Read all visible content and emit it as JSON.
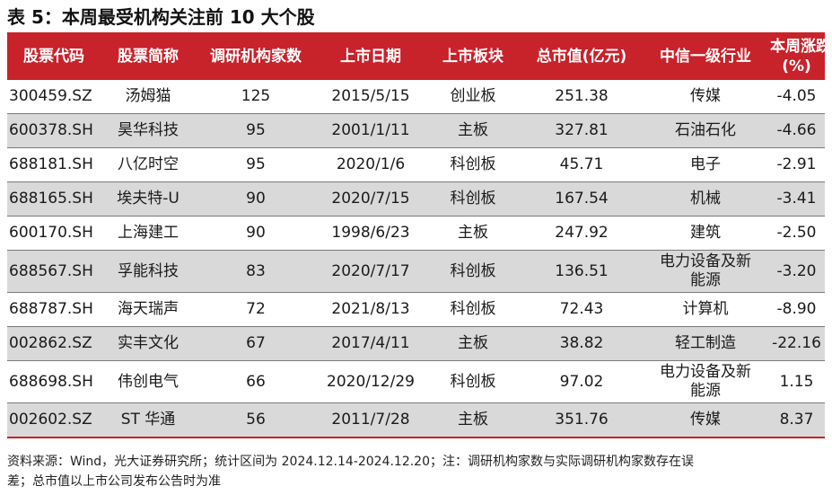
{
  "title": "表 5：本周最受机构关注前 10 大个股",
  "header": {
    "code": "股票代码",
    "name": "股票简称",
    "count": "调研机构家数",
    "date": "上市日期",
    "board": "上市板块",
    "mcap": "总市值(亿元)",
    "industry": "中信一级行业",
    "chg_line1": "本周涨跌幅",
    "chg_line2": "(%)"
  },
  "rows": [
    {
      "code": "300459.SZ",
      "name": "汤姆猫",
      "count": "125",
      "date": "2015/5/15",
      "board": "创业板",
      "mcap": "251.38",
      "industry": "传媒",
      "chg": "-4.05"
    },
    {
      "code": "600378.SH",
      "name": "昊华科技",
      "count": "95",
      "date": "2001/1/11",
      "board": "主板",
      "mcap": "327.81",
      "industry": "石油石化",
      "chg": "-4.66"
    },
    {
      "code": "688181.SH",
      "name": "八亿时空",
      "count": "95",
      "date": "2020/1/6",
      "board": "科创板",
      "mcap": "45.71",
      "industry": "电子",
      "chg": "-2.91"
    },
    {
      "code": "688165.SH",
      "name": "埃夫特-U",
      "count": "90",
      "date": "2020/7/15",
      "board": "科创板",
      "mcap": "167.54",
      "industry": "机械",
      "chg": "-3.41"
    },
    {
      "code": "600170.SH",
      "name": "上海建工",
      "count": "90",
      "date": "1998/6/23",
      "board": "主板",
      "mcap": "247.92",
      "industry": "建筑",
      "chg": "-2.50"
    },
    {
      "code": "688567.SH",
      "name": "孚能科技",
      "count": "83",
      "date": "2020/7/17",
      "board": "科创板",
      "mcap": "136.51",
      "industry_l1": "电力设备及新",
      "industry_l2": "能源",
      "chg": "-3.20"
    },
    {
      "code": "688787.SH",
      "name": "海天瑞声",
      "count": "72",
      "date": "2021/8/13",
      "board": "科创板",
      "mcap": "72.43",
      "industry": "计算机",
      "chg": "-8.90"
    },
    {
      "code": "002862.SZ",
      "name": "实丰文化",
      "count": "67",
      "date": "2017/4/11",
      "board": "主板",
      "mcap": "38.82",
      "industry": "轻工制造",
      "chg": "-22.16"
    },
    {
      "code": "688698.SH",
      "name": "伟创电气",
      "count": "66",
      "date": "2020/12/29",
      "board": "科创板",
      "mcap": "97.02",
      "industry_l1": "电力设备及新",
      "industry_l2": "能源",
      "chg": "1.15"
    },
    {
      "code": "002602.SZ",
      "name": "ST 华通",
      "count": "56",
      "date": "2011/7/28",
      "board": "主板",
      "mcap": "351.76",
      "industry": "传媒",
      "chg": "8.37"
    }
  ],
  "source_line1": "资料来源：Wind，光大证券研究所；统计区间为 2024.12.14-2024.12.20；注：调研机构家数与实际调研机构家数存在误",
  "source_line2": "差；总市值以上市公司发布公告时为准",
  "colors": {
    "header_bg": "#c8222a",
    "shade_row": "#d9d9d9"
  }
}
